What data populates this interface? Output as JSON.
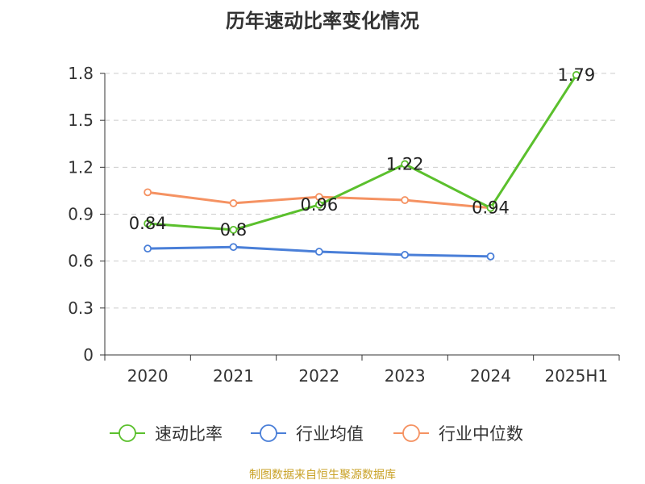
{
  "title": "历年速动比率变化情况",
  "source": "制图数据来自恒生聚源数据库",
  "colors": {
    "速动比率": "#5bc02d",
    "行业均值": "#4a7fd8",
    "行业中位数": "#f59262",
    "grid": "#cccccc",
    "axis": "#333333",
    "source": "#c9a227"
  },
  "chart_data": {
    "type": "line",
    "categories": [
      "2020",
      "2021",
      "2022",
      "2023",
      "2024",
      "2025H1"
    ],
    "ylim": [
      0,
      1.8
    ],
    "yticks": [
      "0",
      "0.3",
      "0.6",
      "0.9",
      "1.2",
      "1.5",
      "1.8"
    ],
    "grid": true,
    "legend": "bottom",
    "series": [
      {
        "name": "速动比率",
        "values": [
          0.84,
          0.8,
          0.96,
          1.22,
          0.94,
          1.79
        ],
        "labels": [
          "0.84",
          "0.8",
          "0.96",
          "1.22",
          "0.94",
          "1.79"
        ]
      },
      {
        "name": "行业均值",
        "values": [
          0.68,
          0.69,
          0.66,
          0.64,
          0.63,
          null
        ]
      },
      {
        "name": "行业中位数",
        "values": [
          1.04,
          0.97,
          1.01,
          0.99,
          0.94,
          null
        ]
      }
    ]
  }
}
